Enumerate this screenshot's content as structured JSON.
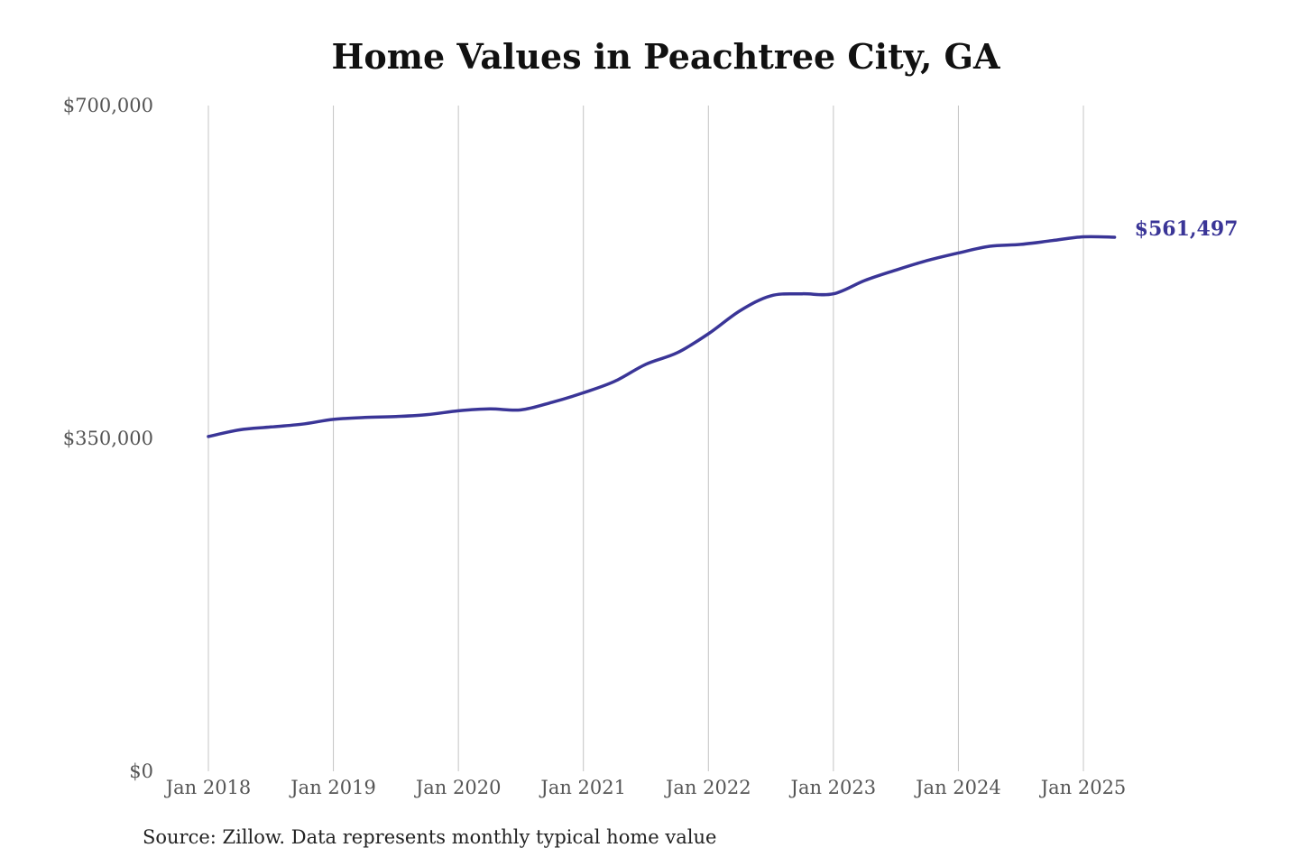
{
  "chart_data": {
    "type": "line",
    "title": "Home Values in Peachtree City, GA",
    "source": "Source: Zillow. Data represents monthly typical home value",
    "ylim": [
      0,
      700000
    ],
    "y_ticks": [
      {
        "value": 0,
        "label": "$0"
      },
      {
        "value": 350000,
        "label": "$350,000"
      },
      {
        "value": 700000,
        "label": "$700,000"
      }
    ],
    "x_ticks": [
      {
        "value": "2018-01",
        "label": "Jan 2018"
      },
      {
        "value": "2019-01",
        "label": "Jan 2019"
      },
      {
        "value": "2020-01",
        "label": "Jan 2020"
      },
      {
        "value": "2021-01",
        "label": "Jan 2021"
      },
      {
        "value": "2022-01",
        "label": "Jan 2022"
      },
      {
        "value": "2023-01",
        "label": "Jan 2023"
      },
      {
        "value": "2024-01",
        "label": "Jan 2024"
      },
      {
        "value": "2025-01",
        "label": "Jan 2025"
      }
    ],
    "grid": "vertical",
    "series": [
      {
        "color": "#3a3597",
        "end_label": "$561,497",
        "points": [
          {
            "x": "2018-01",
            "y": 352000
          },
          {
            "x": "2018-04",
            "y": 359000
          },
          {
            "x": "2018-07",
            "y": 362000
          },
          {
            "x": "2018-10",
            "y": 365000
          },
          {
            "x": "2019-01",
            "y": 370000
          },
          {
            "x": "2019-04",
            "y": 372000
          },
          {
            "x": "2019-07",
            "y": 373000
          },
          {
            "x": "2019-10",
            "y": 375000
          },
          {
            "x": "2020-01",
            "y": 379000
          },
          {
            "x": "2020-04",
            "y": 381000
          },
          {
            "x": "2020-07",
            "y": 380000
          },
          {
            "x": "2020-10",
            "y": 388000
          },
          {
            "x": "2021-01",
            "y": 398000
          },
          {
            "x": "2021-04",
            "y": 410000
          },
          {
            "x": "2021-07",
            "y": 428000
          },
          {
            "x": "2021-10",
            "y": 440000
          },
          {
            "x": "2022-01",
            "y": 460000
          },
          {
            "x": "2022-04",
            "y": 484000
          },
          {
            "x": "2022-07",
            "y": 500000
          },
          {
            "x": "2022-10",
            "y": 502000
          },
          {
            "x": "2023-01",
            "y": 502000
          },
          {
            "x": "2023-04",
            "y": 516000
          },
          {
            "x": "2023-07",
            "y": 527000
          },
          {
            "x": "2023-10",
            "y": 537000
          },
          {
            "x": "2024-01",
            "y": 545000
          },
          {
            "x": "2024-04",
            "y": 552000
          },
          {
            "x": "2024-07",
            "y": 554000
          },
          {
            "x": "2024-10",
            "y": 558000
          },
          {
            "x": "2025-01",
            "y": 562000
          },
          {
            "x": "2025-04",
            "y": 561497
          }
        ]
      }
    ]
  }
}
